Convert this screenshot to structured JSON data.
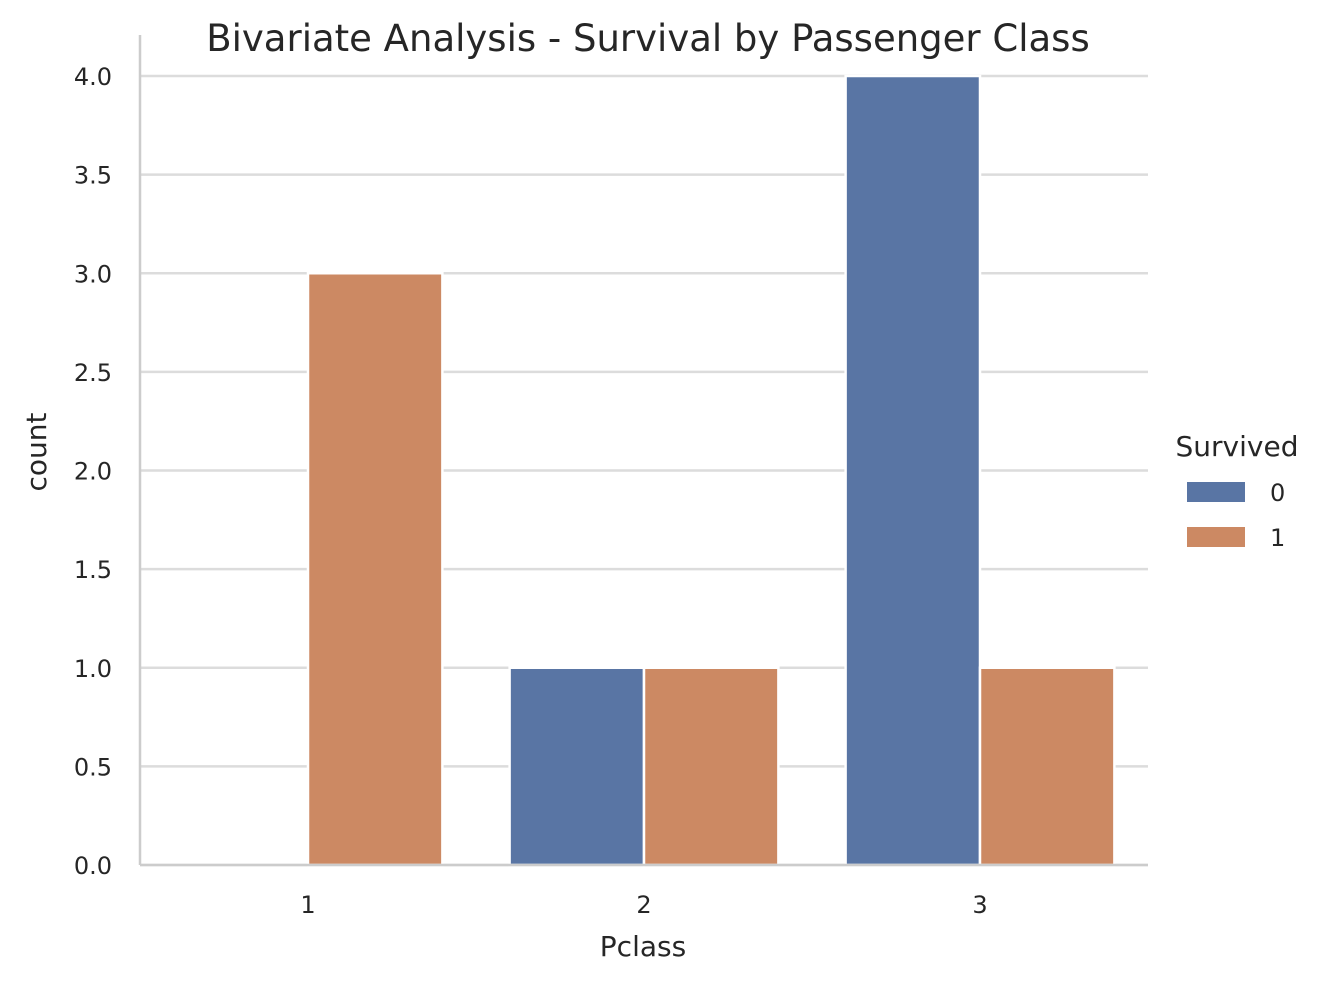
{
  "chart_data": {
    "type": "bar",
    "title": "Bivariate Analysis - Survival by Passenger Class",
    "xlabel": "Pclass",
    "ylabel": "count",
    "categories": [
      "1",
      "2",
      "3"
    ],
    "series": [
      {
        "name": "0",
        "values": [
          0,
          1,
          4
        ],
        "color": "#5975a4"
      },
      {
        "name": "1",
        "values": [
          3,
          1,
          1
        ],
        "color": "#cc8963"
      }
    ],
    "ylim": [
      0,
      4.2
    ],
    "yticks": [
      "0.0",
      "0.5",
      "1.0",
      "1.5",
      "2.0",
      "2.5",
      "3.0",
      "3.5",
      "4.0"
    ],
    "grid": true,
    "legend": {
      "title": "Survived",
      "placement": "right"
    },
    "colors": {
      "grid": "#dcdcdc",
      "spine": "#cccccc",
      "text": "#262626"
    }
  }
}
